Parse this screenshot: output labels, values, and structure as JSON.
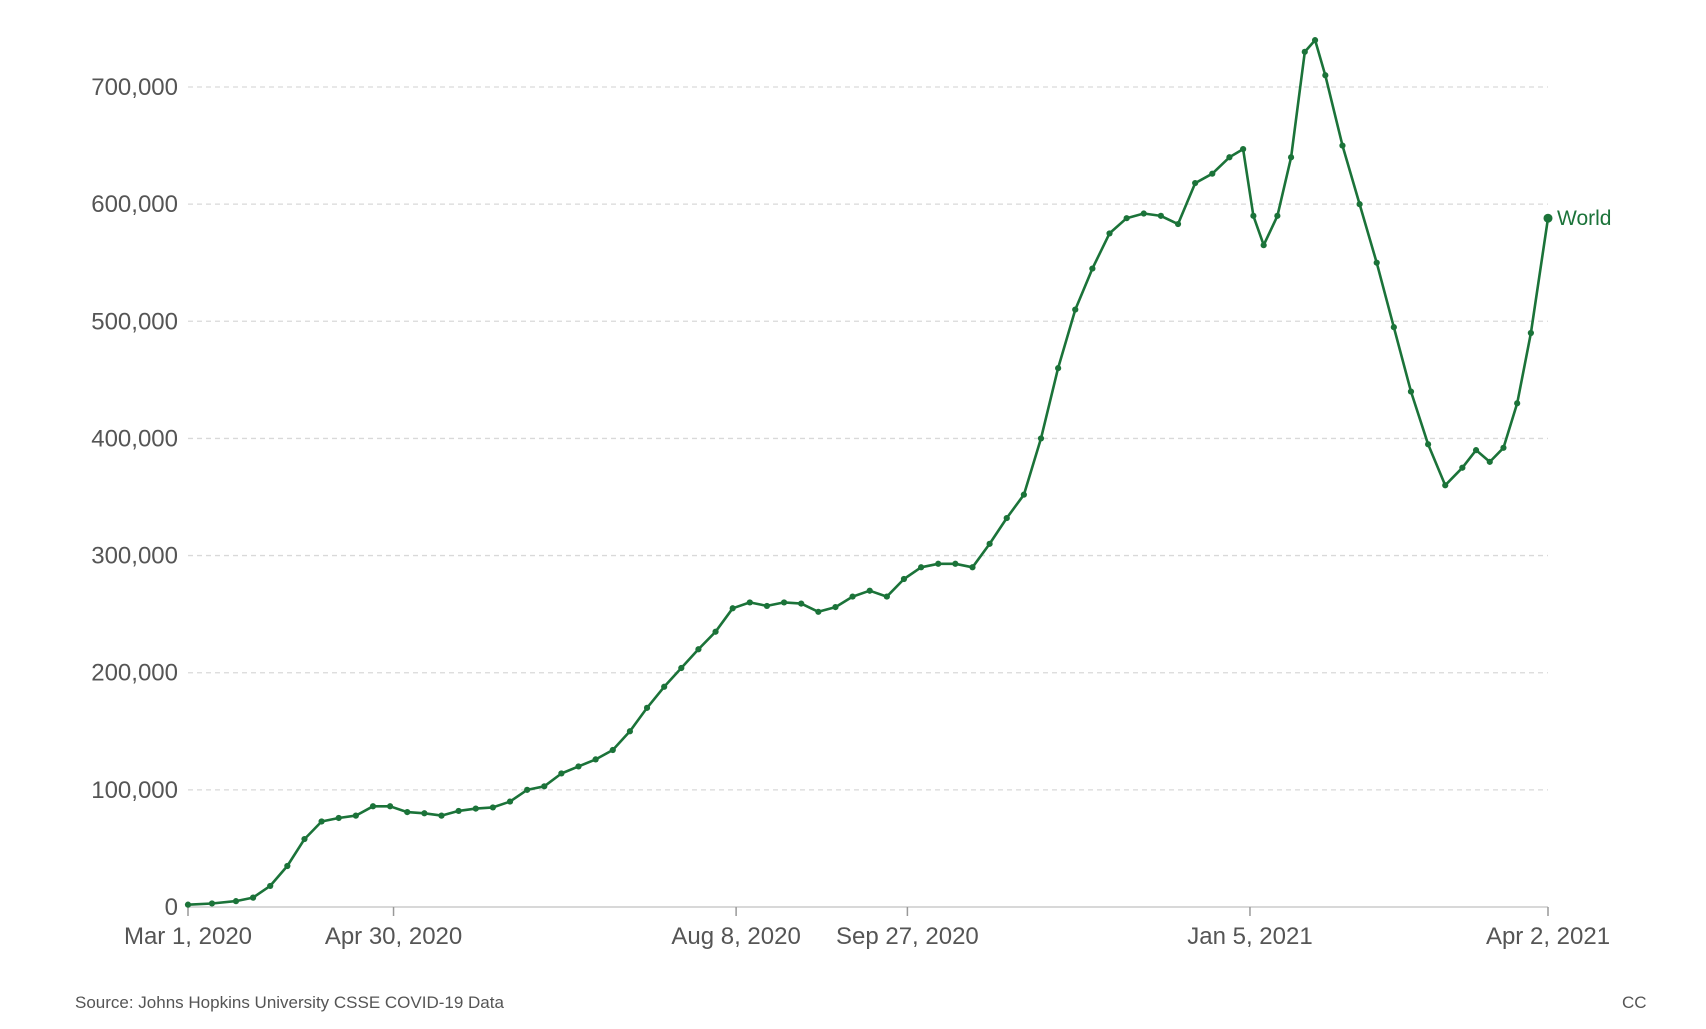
{
  "chart_data": {
    "type": "line",
    "xlim": [
      "2020-03-01",
      "2021-04-02"
    ],
    "ylim": [
      0,
      700000
    ],
    "grid": true,
    "x_ticks": [
      {
        "date": "2020-03-01",
        "label": "Mar 1, 2020"
      },
      {
        "date": "2020-04-30",
        "label": "Apr 30, 2020"
      },
      {
        "date": "2020-08-08",
        "label": "Aug 8, 2020"
      },
      {
        "date": "2020-09-27",
        "label": "Sep 27, 2020"
      },
      {
        "date": "2021-01-05",
        "label": "Jan 5, 2021"
      },
      {
        "date": "2021-04-02",
        "label": "Apr 2, 2021"
      }
    ],
    "y_ticks": [
      {
        "value": 0,
        "label": "0"
      },
      {
        "value": 100000,
        "label": "100,000"
      },
      {
        "value": 200000,
        "label": "200,000"
      },
      {
        "value": 300000,
        "label": "300,000"
      },
      {
        "value": 400000,
        "label": "400,000"
      },
      {
        "value": 500000,
        "label": "500,000"
      },
      {
        "value": 600000,
        "label": "600,000"
      },
      {
        "value": 700000,
        "label": "700,000"
      }
    ],
    "series": [
      {
        "name": "World",
        "color": "#1b7339",
        "points": [
          [
            "2020-03-01",
            2000
          ],
          [
            "2020-03-08",
            3000
          ],
          [
            "2020-03-15",
            5000
          ],
          [
            "2020-03-20",
            8000
          ],
          [
            "2020-03-25",
            18000
          ],
          [
            "2020-03-30",
            35000
          ],
          [
            "2020-04-04",
            58000
          ],
          [
            "2020-04-09",
            73000
          ],
          [
            "2020-04-14",
            76000
          ],
          [
            "2020-04-19",
            78000
          ],
          [
            "2020-04-24",
            86000
          ],
          [
            "2020-04-29",
            86000
          ],
          [
            "2020-05-04",
            81000
          ],
          [
            "2020-05-09",
            80000
          ],
          [
            "2020-05-14",
            78000
          ],
          [
            "2020-05-19",
            82000
          ],
          [
            "2020-05-24",
            84000
          ],
          [
            "2020-05-29",
            85000
          ],
          [
            "2020-06-03",
            90000
          ],
          [
            "2020-06-08",
            100000
          ],
          [
            "2020-06-13",
            103000
          ],
          [
            "2020-06-18",
            114000
          ],
          [
            "2020-06-23",
            120000
          ],
          [
            "2020-06-28",
            126000
          ],
          [
            "2020-07-03",
            134000
          ],
          [
            "2020-07-08",
            150000
          ],
          [
            "2020-07-13",
            170000
          ],
          [
            "2020-07-18",
            188000
          ],
          [
            "2020-07-23",
            204000
          ],
          [
            "2020-07-28",
            220000
          ],
          [
            "2020-08-02",
            235000
          ],
          [
            "2020-08-07",
            255000
          ],
          [
            "2020-08-12",
            260000
          ],
          [
            "2020-08-17",
            257000
          ],
          [
            "2020-08-22",
            260000
          ],
          [
            "2020-08-27",
            259000
          ],
          [
            "2020-09-01",
            252000
          ],
          [
            "2020-09-06",
            256000
          ],
          [
            "2020-09-11",
            265000
          ],
          [
            "2020-09-16",
            270000
          ],
          [
            "2020-09-21",
            265000
          ],
          [
            "2020-09-26",
            280000
          ],
          [
            "2020-10-01",
            290000
          ],
          [
            "2020-10-06",
            293000
          ],
          [
            "2020-10-11",
            293000
          ],
          [
            "2020-10-16",
            290000
          ],
          [
            "2020-10-21",
            310000
          ],
          [
            "2020-10-26",
            332000
          ],
          [
            "2020-10-31",
            352000
          ],
          [
            "2020-11-05",
            400000
          ],
          [
            "2020-11-10",
            460000
          ],
          [
            "2020-11-15",
            510000
          ],
          [
            "2020-11-20",
            545000
          ],
          [
            "2020-11-25",
            575000
          ],
          [
            "2020-11-30",
            588000
          ],
          [
            "2020-12-05",
            592000
          ],
          [
            "2020-12-10",
            590000
          ],
          [
            "2020-12-15",
            583000
          ],
          [
            "2020-12-20",
            618000
          ],
          [
            "2020-12-25",
            626000
          ],
          [
            "2020-12-30",
            640000
          ],
          [
            "2021-01-03",
            647000
          ],
          [
            "2021-01-06",
            590000
          ],
          [
            "2021-01-09",
            565000
          ],
          [
            "2021-01-13",
            590000
          ],
          [
            "2021-01-17",
            640000
          ],
          [
            "2021-01-21",
            730000
          ],
          [
            "2021-01-24",
            740000
          ],
          [
            "2021-01-27",
            710000
          ],
          [
            "2021-02-01",
            650000
          ],
          [
            "2021-02-06",
            600000
          ],
          [
            "2021-02-11",
            550000
          ],
          [
            "2021-02-16",
            495000
          ],
          [
            "2021-02-21",
            440000
          ],
          [
            "2021-02-26",
            395000
          ],
          [
            "2021-03-03",
            360000
          ],
          [
            "2021-03-08",
            375000
          ],
          [
            "2021-03-12",
            390000
          ],
          [
            "2021-03-16",
            380000
          ],
          [
            "2021-03-20",
            392000
          ],
          [
            "2021-03-24",
            430000
          ],
          [
            "2021-03-28",
            490000
          ],
          [
            "2021-04-02",
            588000
          ]
        ]
      }
    ]
  },
  "footer": {
    "source": "Source: Johns Hopkins University CSSE COVID-19 Data",
    "license": "CC"
  }
}
